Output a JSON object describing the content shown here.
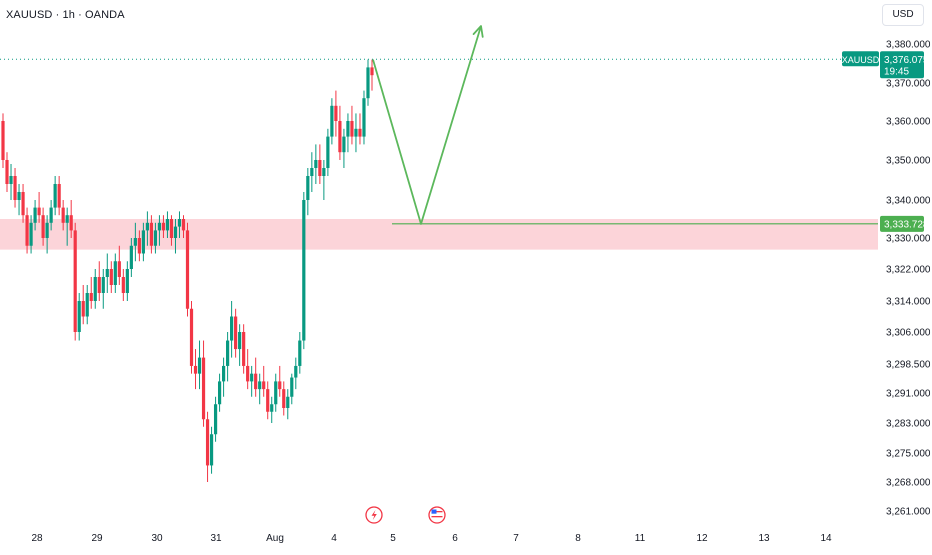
{
  "header": {
    "symbol_line": "XAUUSD · 1h · OANDA",
    "currency_label": "USD"
  },
  "colors": {
    "up": "#089981",
    "down": "#f23645",
    "zone_fill": "#fbcdd2",
    "support": "#4caf50",
    "arrow": "#5cb85c",
    "price_tag": "#089981",
    "axis_text": "#131722"
  },
  "chart_data": {
    "type": "candlestick",
    "symbol": "XAUUSD",
    "interval": "1h",
    "source": "OANDA",
    "y_ticks": [
      "3,380.000",
      "3,370.000",
      "3,360.000",
      "3,350.000",
      "3,340.000",
      "3,330.000",
      "3,322.000",
      "3,314.000",
      "3,306.000",
      "3,298.500",
      "3,291.000",
      "3,283.000",
      "3,275.000",
      "3,268.000",
      "3,261.000"
    ],
    "x_ticks": [
      "28",
      "29",
      "30",
      "31",
      "Aug",
      "4",
      "5",
      "6",
      "7",
      "8",
      "11",
      "12",
      "13",
      "14"
    ],
    "ylim": [
      3258,
      3388
    ],
    "candles": [
      [
        3360,
        3362,
        3348,
        3350
      ],
      [
        3350,
        3352,
        3342,
        3344
      ],
      [
        3344,
        3349,
        3340,
        3346
      ],
      [
        3346,
        3348,
        3338,
        3340
      ],
      [
        3340,
        3344,
        3336,
        3342
      ],
      [
        3342,
        3344,
        3334,
        3336
      ],
      [
        3336,
        3338,
        3326,
        3328
      ],
      [
        3328,
        3336,
        3326,
        3334
      ],
      [
        3334,
        3340,
        3332,
        3338
      ],
      [
        3338,
        3342,
        3334,
        3336
      ],
      [
        3336,
        3338,
        3328,
        3330
      ],
      [
        3330,
        3336,
        3326,
        3334
      ],
      [
        3334,
        3340,
        3332,
        3338
      ],
      [
        3338,
        3346,
        3336,
        3344
      ],
      [
        3344,
        3346,
        3336,
        3338
      ],
      [
        3338,
        3340,
        3332,
        3334
      ],
      [
        3334,
        3338,
        3328,
        3336
      ],
      [
        3336,
        3340,
        3330,
        3332
      ],
      [
        3332,
        3334,
        3304,
        3306
      ],
      [
        3306,
        3316,
        3304,
        3314
      ],
      [
        3314,
        3318,
        3308,
        3310
      ],
      [
        3310,
        3318,
        3308,
        3316
      ],
      [
        3316,
        3320,
        3312,
        3314
      ],
      [
        3314,
        3322,
        3312,
        3320
      ],
      [
        3320,
        3324,
        3314,
        3316
      ],
      [
        3316,
        3322,
        3312,
        3320
      ],
      [
        3320,
        3326,
        3316,
        3322
      ],
      [
        3322,
        3324,
        3316,
        3318
      ],
      [
        3318,
        3326,
        3316,
        3324
      ],
      [
        3324,
        3328,
        3318,
        3320
      ],
      [
        3320,
        3322,
        3314,
        3316
      ],
      [
        3316,
        3324,
        3314,
        3322
      ],
      [
        3322,
        3330,
        3320,
        3328
      ],
      [
        3328,
        3334,
        3324,
        3330
      ],
      [
        3330,
        3332,
        3324,
        3326
      ],
      [
        3326,
        3334,
        3324,
        3332
      ],
      [
        3332,
        3337,
        3328,
        3334
      ],
      [
        3334,
        3336,
        3326,
        3328
      ],
      [
        3328,
        3334,
        3326,
        3332
      ],
      [
        3332,
        3336,
        3328,
        3334
      ],
      [
        3334,
        3336,
        3330,
        3332
      ],
      [
        3332,
        3337,
        3330,
        3335
      ],
      [
        3335,
        3336,
        3328,
        3330
      ],
      [
        3330,
        3335,
        3326,
        3333
      ],
      [
        3333,
        3337,
        3330,
        3335
      ],
      [
        3335,
        3336,
        3330,
        3332
      ],
      [
        3332,
        3334,
        3310,
        3312
      ],
      [
        3312,
        3314,
        3296,
        3298
      ],
      [
        3298,
        3302,
        3292,
        3296
      ],
      [
        3296,
        3304,
        3292,
        3300
      ],
      [
        3300,
        3304,
        3282,
        3284
      ],
      [
        3284,
        3286,
        3268,
        3272
      ],
      [
        3272,
        3282,
        3270,
        3280
      ],
      [
        3280,
        3290,
        3278,
        3288
      ],
      [
        3288,
        3296,
        3286,
        3294
      ],
      [
        3294,
        3300,
        3290,
        3298
      ],
      [
        3298,
        3306,
        3294,
        3304
      ],
      [
        3304,
        3314,
        3300,
        3310
      ],
      [
        3310,
        3312,
        3300,
        3302
      ],
      [
        3302,
        3308,
        3298,
        3306
      ],
      [
        3306,
        3308,
        3296,
        3298
      ],
      [
        3298,
        3302,
        3292,
        3294
      ],
      [
        3294,
        3298,
        3290,
        3296
      ],
      [
        3296,
        3300,
        3290,
        3292
      ],
      [
        3292,
        3296,
        3288,
        3294
      ],
      [
        3294,
        3298,
        3290,
        3292
      ],
      [
        3292,
        3294,
        3284,
        3286
      ],
      [
        3286,
        3290,
        3283,
        3288
      ],
      [
        3288,
        3296,
        3286,
        3294
      ],
      [
        3294,
        3298,
        3290,
        3292
      ],
      [
        3292,
        3294,
        3285,
        3287
      ],
      [
        3287,
        3292,
        3284,
        3290
      ],
      [
        3290,
        3296,
        3288,
        3295
      ],
      [
        3295,
        3300,
        3292,
        3298
      ],
      [
        3298,
        3306,
        3296,
        3304
      ],
      [
        3304,
        3342,
        3302,
        3340
      ],
      [
        3340,
        3348,
        3336,
        3346
      ],
      [
        3346,
        3352,
        3342,
        3348
      ],
      [
        3348,
        3354,
        3344,
        3350
      ],
      [
        3350,
        3354,
        3344,
        3346
      ],
      [
        3346,
        3350,
        3340,
        3348
      ],
      [
        3348,
        3358,
        3346,
        3356
      ],
      [
        3356,
        3366,
        3354,
        3364
      ],
      [
        3364,
        3368,
        3356,
        3360
      ],
      [
        3360,
        3364,
        3350,
        3352
      ],
      [
        3352,
        3358,
        3348,
        3356
      ],
      [
        3356,
        3362,
        3352,
        3360
      ],
      [
        3360,
        3364,
        3354,
        3356
      ],
      [
        3356,
        3362,
        3352,
        3358
      ],
      [
        3358,
        3362,
        3354,
        3356
      ],
      [
        3356,
        3368,
        3354,
        3366
      ],
      [
        3366,
        3376,
        3364,
        3374
      ],
      [
        3374,
        3376,
        3368,
        3372
      ]
    ],
    "demand_zone": [
      3327,
      3335
    ],
    "support_level": 3333.728,
    "support_label": "3,333.728",
    "current_price": 3376.075,
    "price_tag": {
      "symbol": "XAUUSD",
      "price": "3,376.075",
      "countdown": "19:45"
    },
    "projection": [
      [
        3376,
        3376
      ],
      [
        3333.7,
        3333.7
      ],
      [
        3384,
        3384
      ]
    ]
  }
}
